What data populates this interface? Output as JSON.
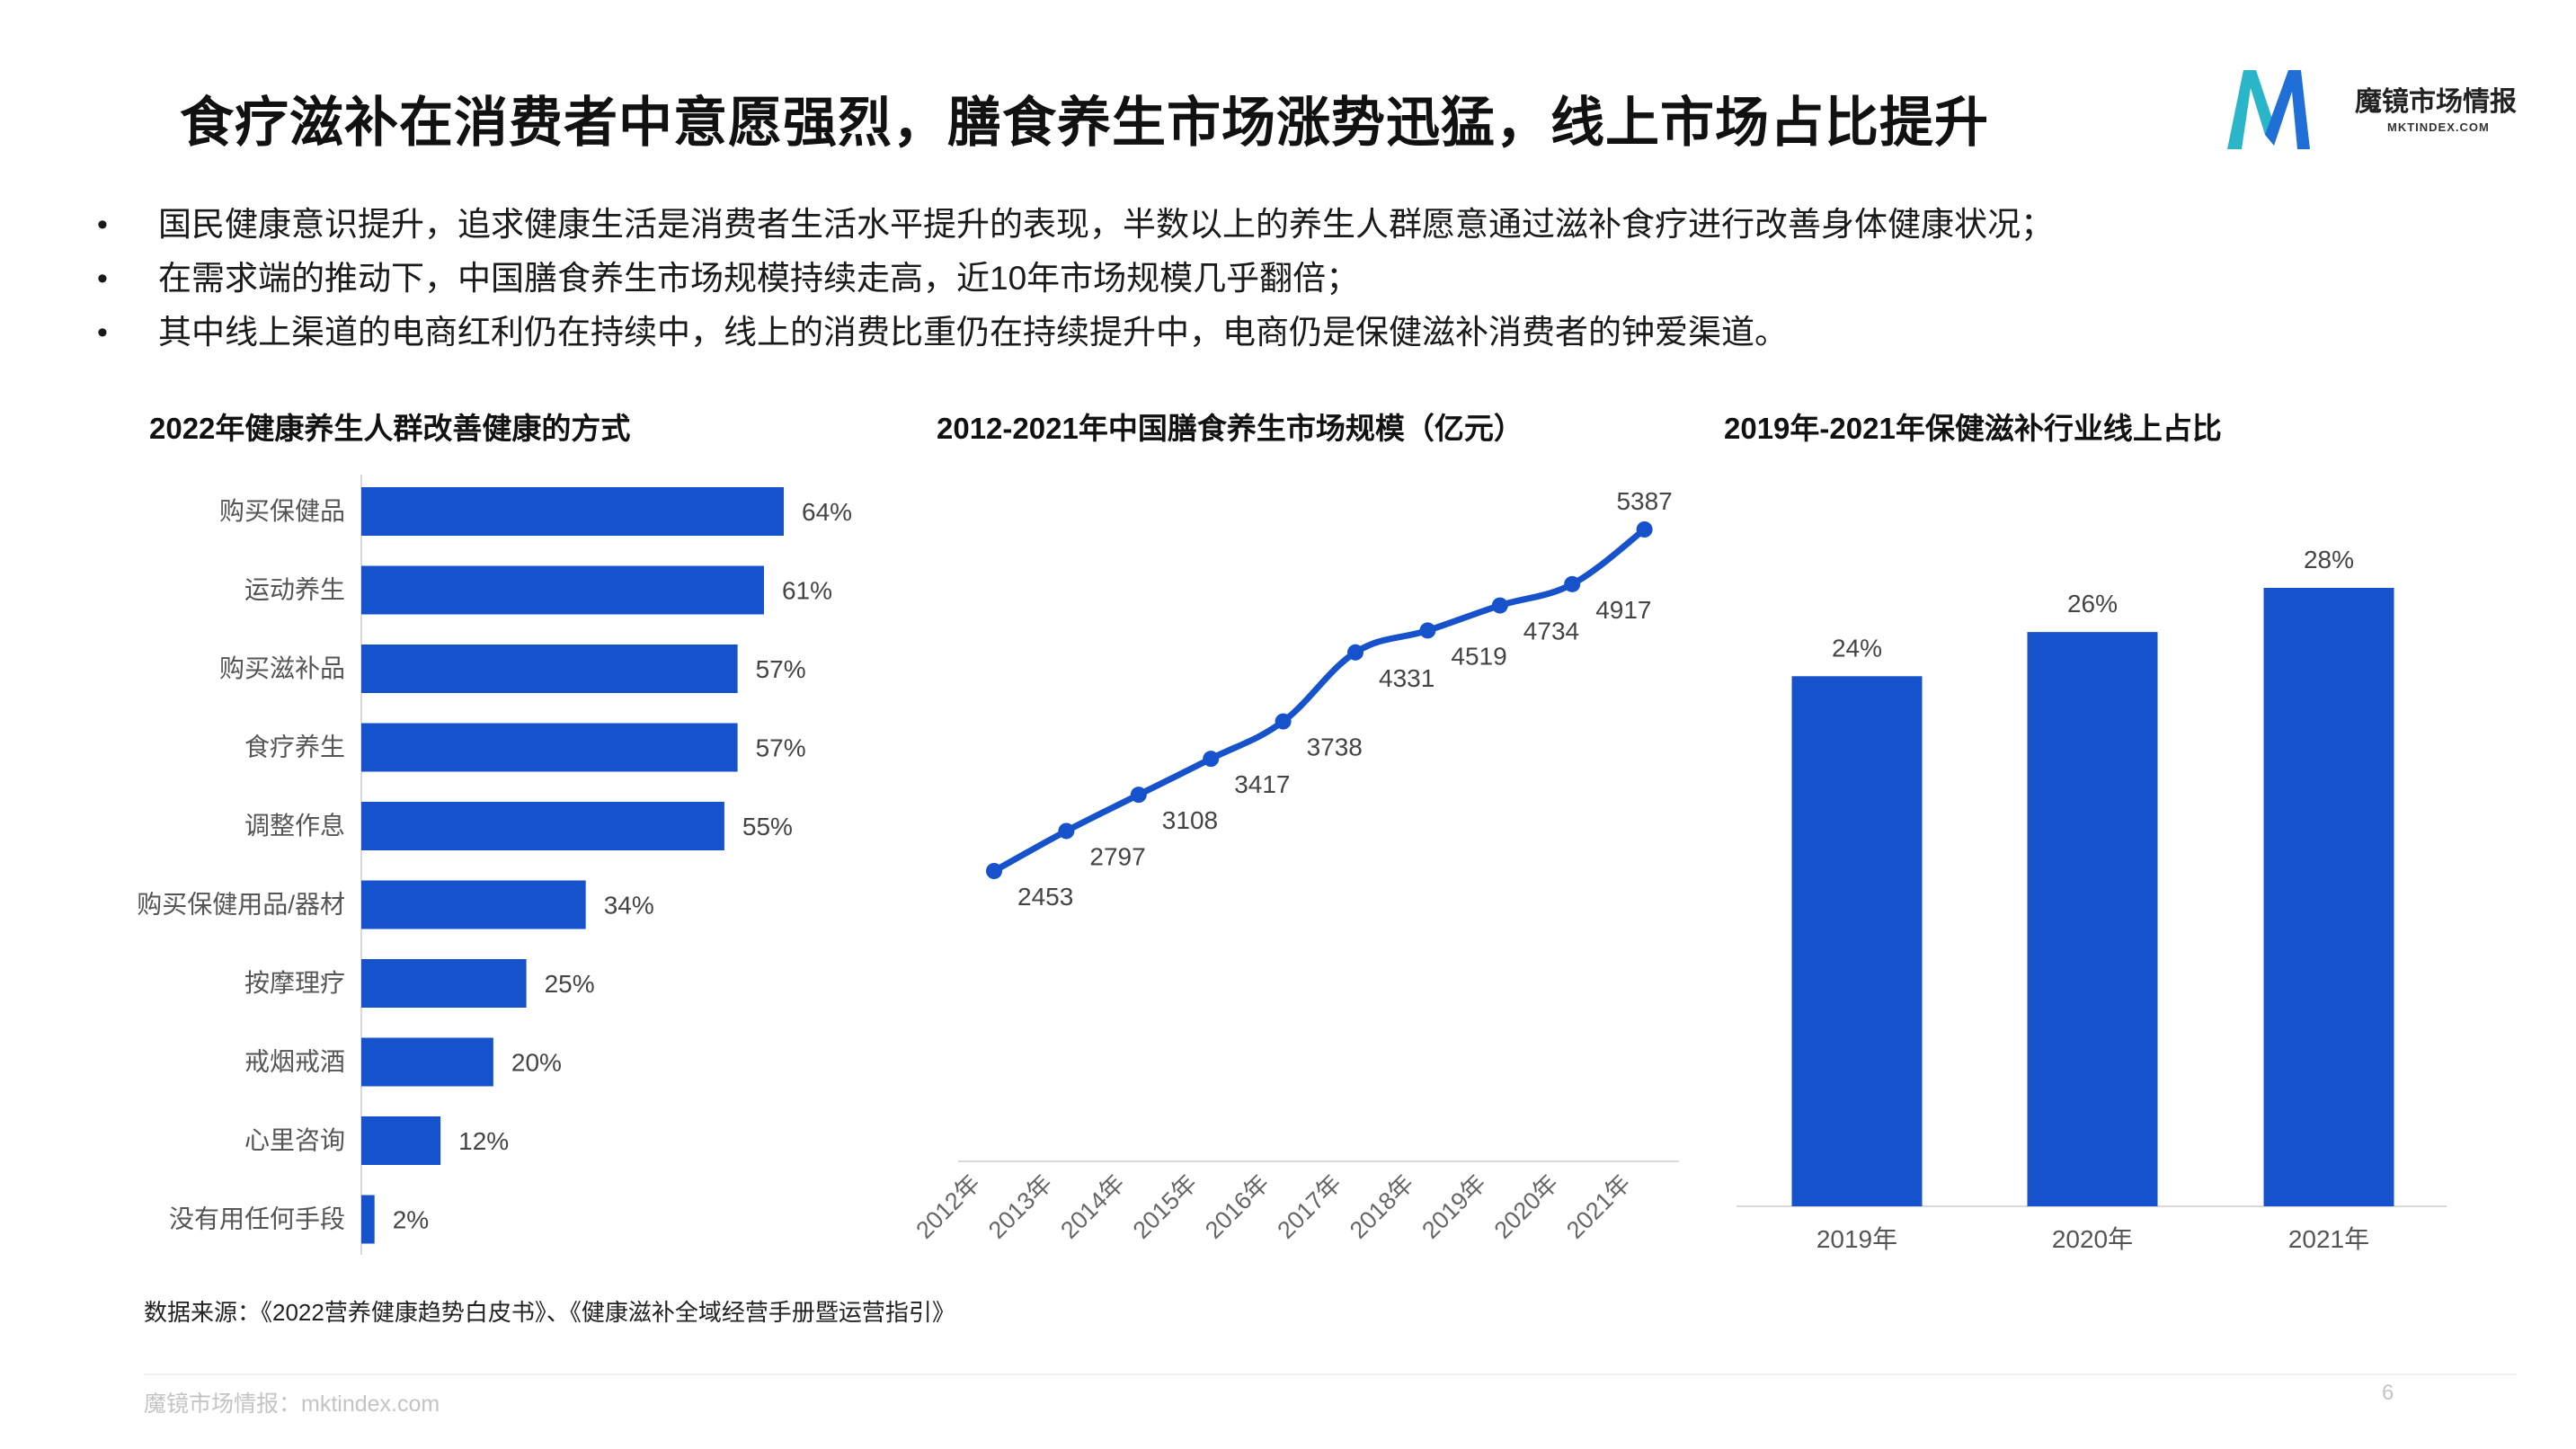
{
  "slide": {
    "title": "食疗滋补在消费者中意愿强烈，膳食养生市场涨势迅猛，线上市场占比提升",
    "logo": {
      "name": "魔镜市场情报",
      "domain": "MKTINDEX.COM"
    },
    "bullets": [
      "国民健康意识提升，追求健康生活是消费者生活水平提升的表现，半数以上的养生人群愿意通过滋补食疗进行改善身体健康状况；",
      "在需求端的推动下，中国膳食养生市场规模持续走高，近10年市场规模几乎翻倍；",
      "其中线上渠道的电商红利仍在持续中，线上的消费比重仍在持续提升中，电商仍是保健滋补消费者的钟爱渠道。"
    ],
    "source": "数据来源：《2022营养健康趋势白皮书》、《健康滋补全域经营手册暨运营指引》",
    "footer": "魔镜市场情报：mktindex.com",
    "page_number": "6",
    "colors": {
      "bar": "#1652CB",
      "line": "#1652CB",
      "axis": "#d9d9d9",
      "logo_teal": "#2bb5c9",
      "logo_blue": "#1f6fd6"
    }
  },
  "chart_data": [
    {
      "type": "bar",
      "orientation": "horizontal",
      "title": "2022年健康养生人群改善健康的方式",
      "categories": [
        "购买保健品",
        "运动养生",
        "购买滋补品",
        "食疗养生",
        "调整作息",
        "购买保健用品/器材",
        "按摩理疗",
        "戒烟戒酒",
        "心里咨询",
        "没有用任何手段"
      ],
      "values": [
        64,
        61,
        57,
        57,
        55,
        34,
        25,
        20,
        12,
        2
      ],
      "labels": [
        "64%",
        "61%",
        "57%",
        "57%",
        "55%",
        "34%",
        "25%",
        "20%",
        "12%",
        "2%"
      ],
      "unit": "%",
      "xlim": [
        0,
        64
      ]
    },
    {
      "type": "line",
      "title": "2012-2021年中国膳食养生市场规模（亿元）",
      "x": [
        "2012年",
        "2013年",
        "2014年",
        "2015年",
        "2016年",
        "2017年",
        "2018年",
        "2019年",
        "2020年",
        "2021年"
      ],
      "values": [
        2453,
        2797,
        3108,
        3417,
        3738,
        4331,
        4519,
        4734,
        4917,
        5387
      ],
      "labels": [
        "2453",
        "2797",
        "3108",
        "3417",
        "3738",
        "4331",
        "4519",
        "4734",
        "4917",
        "5387"
      ],
      "ylim": [
        2453,
        5387
      ]
    },
    {
      "type": "bar",
      "orientation": "vertical",
      "title": "2019年-2021年保健滋补行业线上占比",
      "categories": [
        "2019年",
        "2020年",
        "2021年"
      ],
      "values": [
        24,
        26,
        28
      ],
      "labels": [
        "24%",
        "26%",
        "28%"
      ],
      "unit": "%",
      "ylim": [
        0,
        28
      ]
    }
  ]
}
